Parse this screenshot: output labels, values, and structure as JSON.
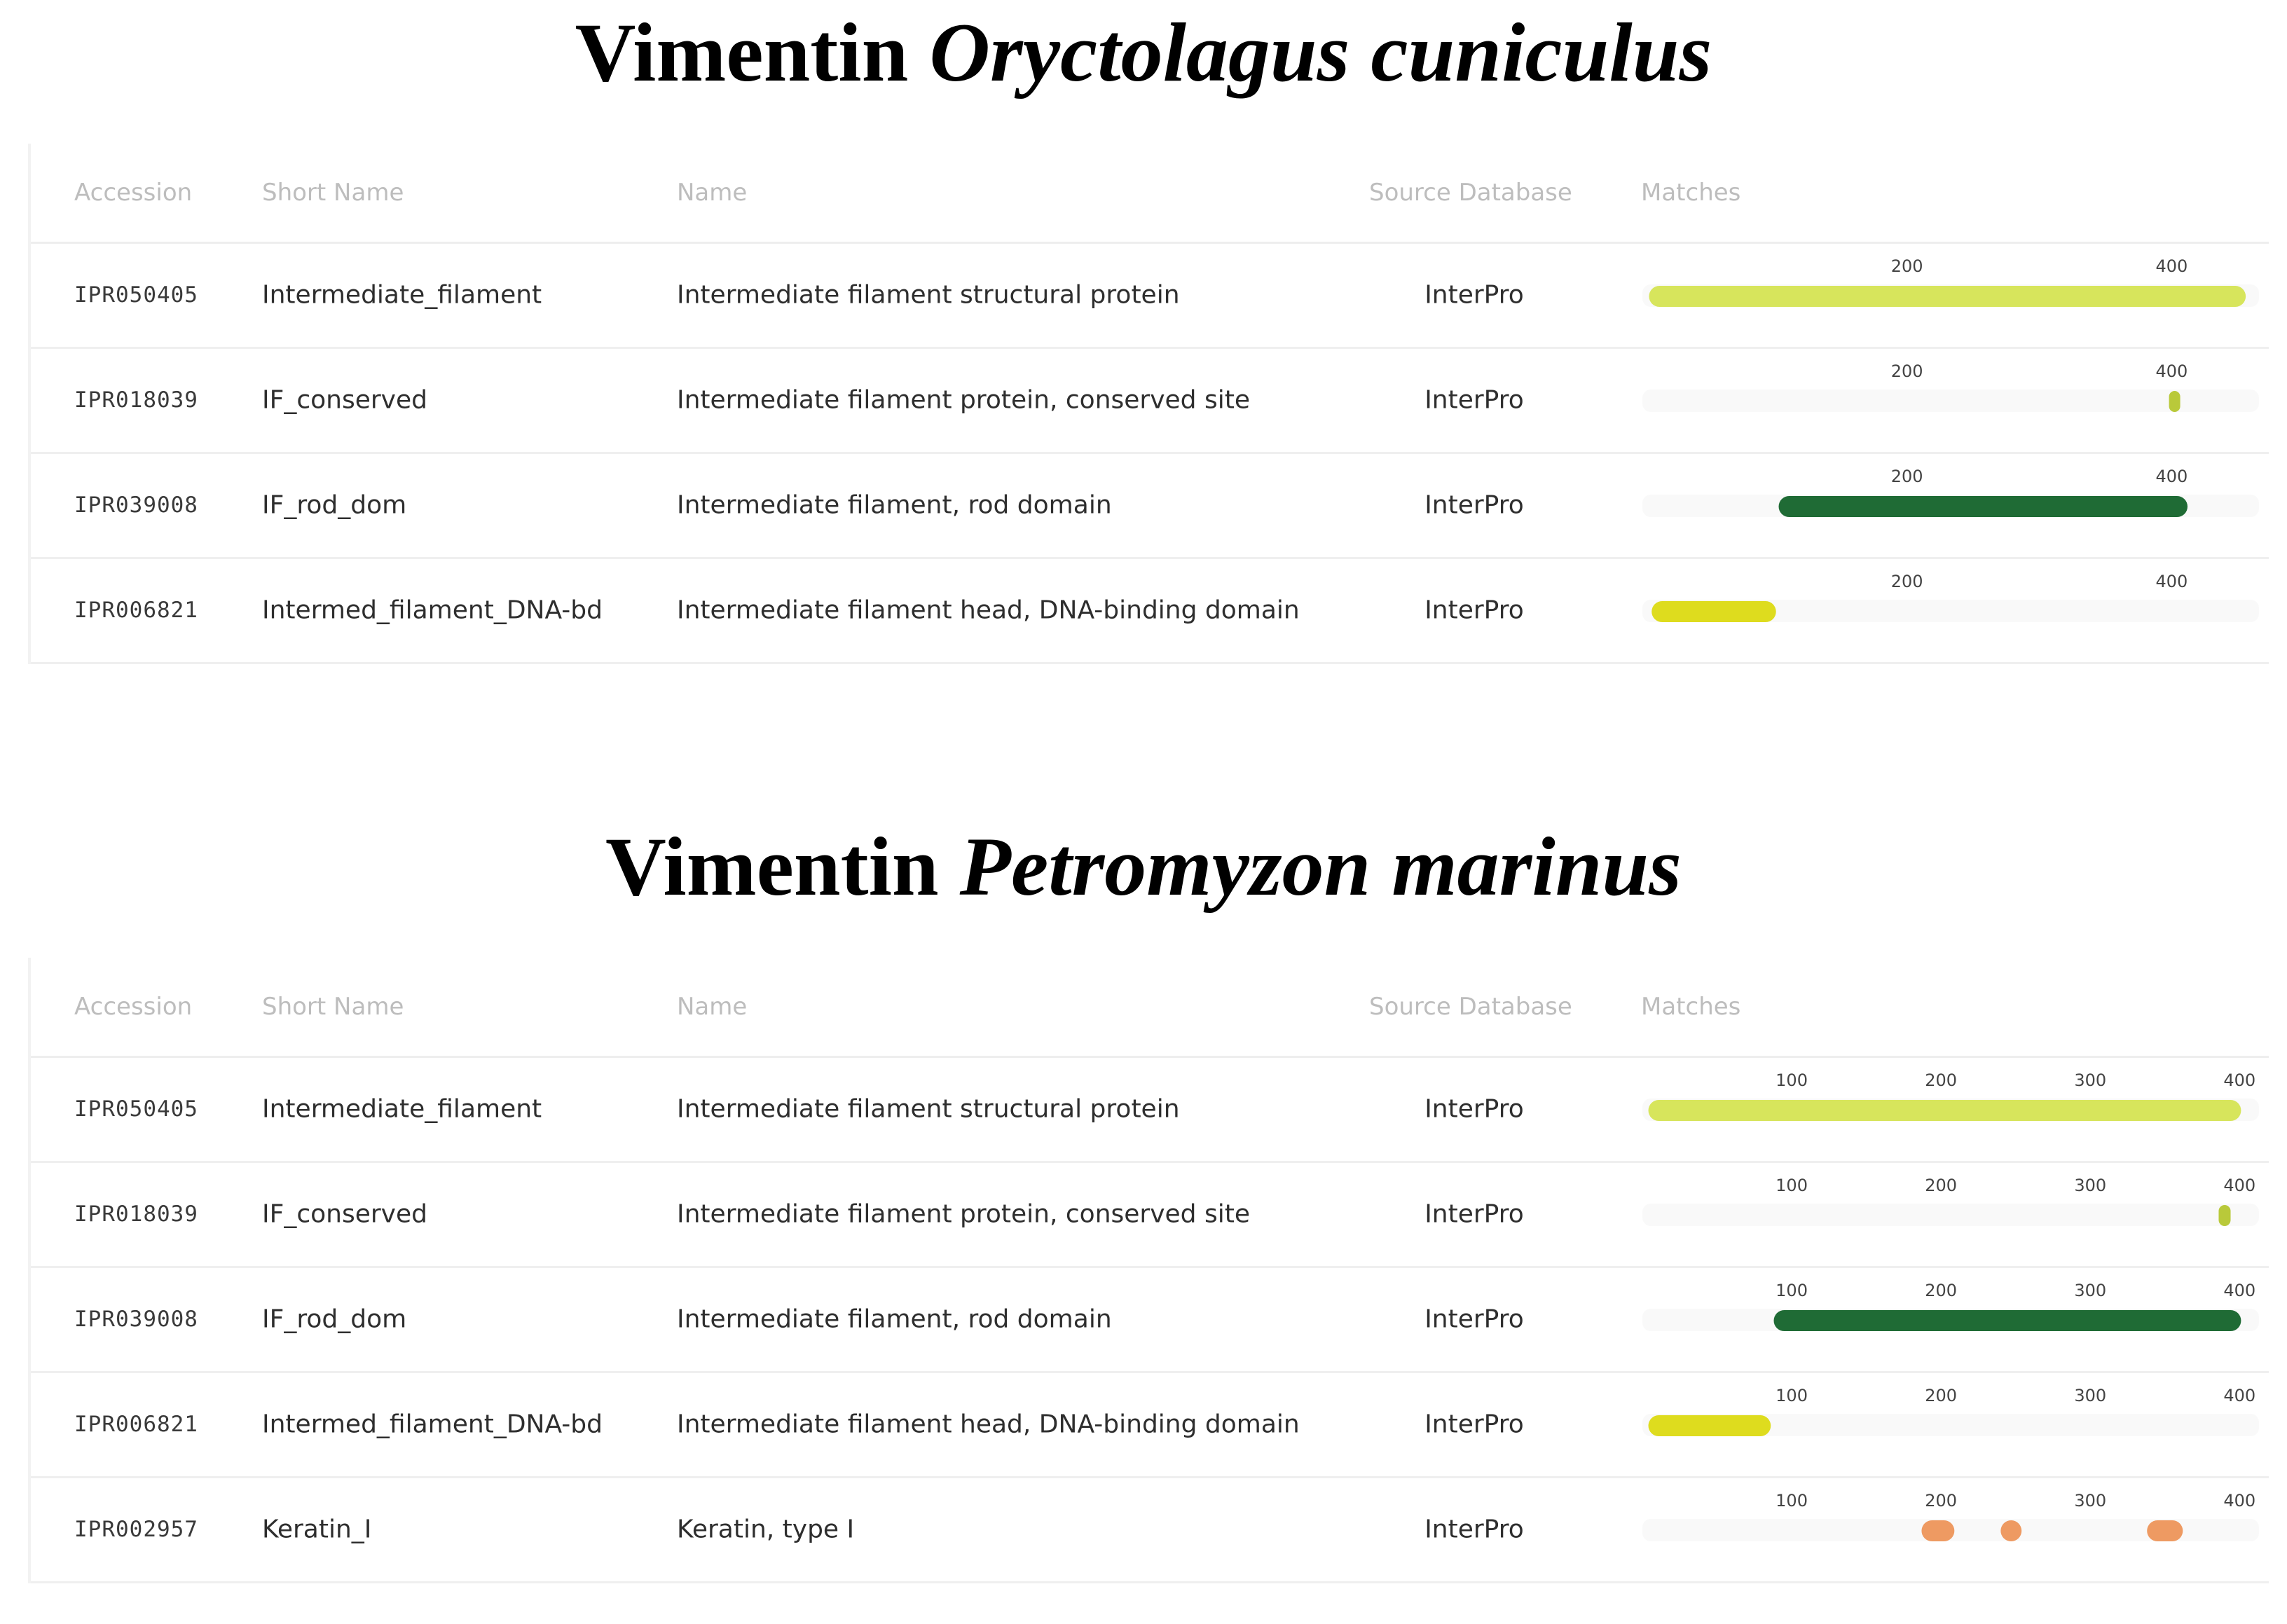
{
  "columns": [
    "Accession",
    "Short Name",
    "Name",
    "Source Database",
    "Matches"
  ],
  "colors": {
    "Intermediate_filament": "#d7e55c",
    "IF_conserved": "#b9c93a",
    "IF_rod_dom": "#1f6b35",
    "Intermed_filament_DNA-bd": "#dedc1e",
    "Keratin_I": "#ee9a62"
  },
  "panels": [
    {
      "title": "Vimentin",
      "species": "Oryctolagus cuniculus",
      "axis_ticks": [
        200,
        400
      ],
      "axis_max": 466,
      "rows": [
        {
          "accession": "IPR050405",
          "short_name": "Intermediate_filament",
          "name": "Intermediate filament structural protein",
          "source": "InterPro",
          "matches": [
            [
              5,
              456
            ]
          ]
        },
        {
          "accession": "IPR018039",
          "short_name": "IF_conserved",
          "name": "Intermediate filament protein, conserved site",
          "source": "InterPro",
          "matches": [
            [
              398,
              406
            ]
          ]
        },
        {
          "accession": "IPR039008",
          "short_name": "IF_rod_dom",
          "name": "Intermediate filament, rod domain",
          "source": "InterPro",
          "matches": [
            [
              103,
              412
            ]
          ]
        },
        {
          "accession": "IPR006821",
          "short_name": "Intermed_filament_DNA-bd",
          "name": "Intermediate filament head, DNA-binding domain",
          "source": "InterPro",
          "matches": [
            [
              7,
              101
            ]
          ]
        }
      ]
    },
    {
      "title": "Vimentin",
      "species": "Petromyzon marinus",
      "axis_ticks": [
        100,
        200,
        300,
        400
      ],
      "axis_max": 413,
      "rows": [
        {
          "accession": "IPR050405",
          "short_name": "Intermediate_filament",
          "name": "Intermediate filament structural protein",
          "source": "InterPro",
          "matches": [
            [
              4,
              401
            ]
          ]
        },
        {
          "accession": "IPR018039",
          "short_name": "IF_conserved",
          "name": "Intermediate filament protein, conserved site",
          "source": "InterPro",
          "matches": [
            [
              386,
              394
            ]
          ]
        },
        {
          "accession": "IPR039008",
          "short_name": "IF_rod_dom",
          "name": "Intermediate filament, rod domain",
          "source": "InterPro",
          "matches": [
            [
              88,
              401
            ]
          ]
        },
        {
          "accession": "IPR006821",
          "short_name": "Intermed_filament_DNA-bd",
          "name": "Intermediate filament head, DNA-binding domain",
          "source": "InterPro",
          "matches": [
            [
              4,
              86
            ]
          ]
        },
        {
          "accession": "IPR002957",
          "short_name": "Keratin_I",
          "name": "Keratin, type I",
          "source": "InterPro",
          "matches": [
            [
              187,
              209
            ],
            [
              240,
              254
            ],
            [
              338,
              362
            ]
          ]
        }
      ]
    }
  ]
}
